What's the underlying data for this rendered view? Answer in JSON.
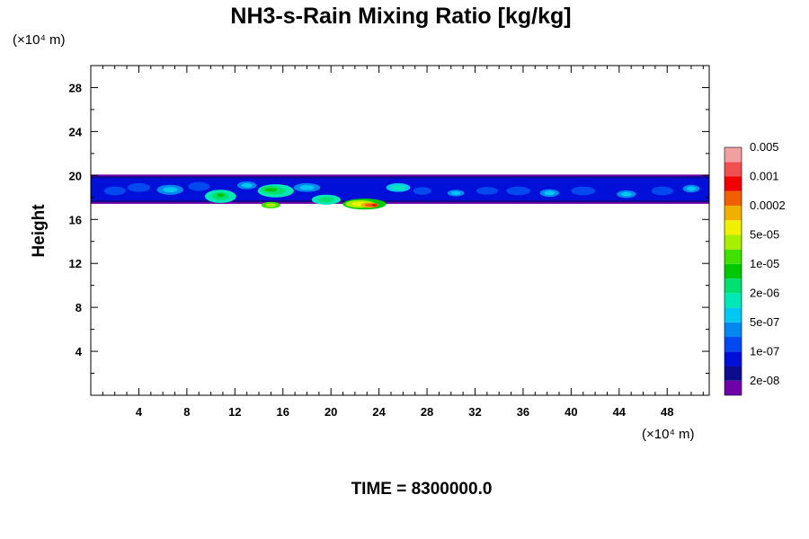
{
  "chart_data": {
    "type": "heatmap",
    "title": "NH3-s-Rain Mixing Ratio [kg/kg]",
    "ylabel": "Height",
    "x_unit_label": "(×10⁴ m)",
    "y_unit_label": "(×10⁴ m)",
    "footer": "TIME = 8300000.0",
    "xlim": [
      0,
      51.5
    ],
    "ylim": [
      0,
      30
    ],
    "x_ticks": [
      "4",
      "8",
      "12",
      "16",
      "20",
      "24",
      "28",
      "32",
      "36",
      "40",
      "44",
      "48"
    ],
    "y_ticks": [
      "4",
      "8",
      "12",
      "16",
      "20",
      "24",
      "28"
    ],
    "colorbar": {
      "colors": [
        "#7000a8",
        "#0c0c8c",
        "#0010d8",
        "#0048f0",
        "#0088f0",
        "#00c8f0",
        "#00e8b8",
        "#00e070",
        "#00c800",
        "#40e000",
        "#a8f000",
        "#f0f000",
        "#f0b000",
        "#f06000",
        "#f00000",
        "#f05050",
        "#f0a0a0"
      ],
      "labels": [
        "2e-08",
        "1e-07",
        "5e-07",
        "2e-06",
        "1e-05",
        "5e-05",
        "0.0002",
        "0.001",
        "0.005"
      ]
    },
    "layer": {
      "y_bottom": 17.5,
      "y_top": 20.0,
      "note": "cloud layer spans full domain"
    },
    "blobs": [
      {
        "x": 2.0,
        "y": 18.6,
        "w": 1.8,
        "h": 0.8,
        "level": 3
      },
      {
        "x": 4.0,
        "y": 18.9,
        "w": 1.9,
        "h": 0.8,
        "level": 3
      },
      {
        "x": 6.6,
        "y": 18.7,
        "w": 2.2,
        "h": 0.9,
        "level": 4
      },
      {
        "x": 9.0,
        "y": 19.0,
        "w": 1.8,
        "h": 0.8,
        "level": 3
      },
      {
        "x": 10.8,
        "y": 18.1,
        "w": 2.6,
        "h": 1.2,
        "level": 6
      },
      {
        "x": 10.8,
        "y": 18.2,
        "w": 1.2,
        "h": 0.6,
        "level": 7
      },
      {
        "x": 13.0,
        "y": 19.1,
        "w": 1.6,
        "h": 0.7,
        "level": 4
      },
      {
        "x": 15.4,
        "y": 18.6,
        "w": 3.0,
        "h": 1.2,
        "level": 6
      },
      {
        "x": 15.0,
        "y": 18.7,
        "w": 1.8,
        "h": 0.7,
        "level": 7
      },
      {
        "x": 15.0,
        "y": 17.3,
        "w": 1.6,
        "h": 0.6,
        "level": 9
      },
      {
        "x": 18.0,
        "y": 18.9,
        "w": 2.2,
        "h": 0.8,
        "level": 4
      },
      {
        "x": 19.6,
        "y": 17.8,
        "w": 2.4,
        "h": 0.9,
        "level": 6
      },
      {
        "x": 22.8,
        "y": 17.4,
        "w": 3.6,
        "h": 1.0,
        "level": 8
      },
      {
        "x": 22.4,
        "y": 17.4,
        "w": 2.4,
        "h": 0.7,
        "level": 10
      },
      {
        "x": 23.2,
        "y": 17.3,
        "w": 1.4,
        "h": 0.5,
        "level": 12
      },
      {
        "x": 23.6,
        "y": 17.3,
        "w": 0.7,
        "h": 0.35,
        "level": 13
      },
      {
        "x": 25.6,
        "y": 18.9,
        "w": 2.0,
        "h": 0.8,
        "level": 5
      },
      {
        "x": 27.6,
        "y": 18.6,
        "w": 1.5,
        "h": 0.7,
        "level": 3
      },
      {
        "x": 30.4,
        "y": 18.4,
        "w": 1.4,
        "h": 0.6,
        "level": 4
      },
      {
        "x": 33.0,
        "y": 18.6,
        "w": 1.8,
        "h": 0.7,
        "level": 3
      },
      {
        "x": 35.6,
        "y": 18.6,
        "w": 2.0,
        "h": 0.8,
        "level": 3
      },
      {
        "x": 38.2,
        "y": 18.4,
        "w": 1.6,
        "h": 0.7,
        "level": 4
      },
      {
        "x": 41.0,
        "y": 18.6,
        "w": 2.0,
        "h": 0.8,
        "level": 3
      },
      {
        "x": 44.6,
        "y": 18.3,
        "w": 1.6,
        "h": 0.7,
        "level": 4
      },
      {
        "x": 47.6,
        "y": 18.6,
        "w": 1.8,
        "h": 0.8,
        "level": 3
      },
      {
        "x": 50.0,
        "y": 18.8,
        "w": 1.4,
        "h": 0.7,
        "level": 4
      }
    ]
  }
}
